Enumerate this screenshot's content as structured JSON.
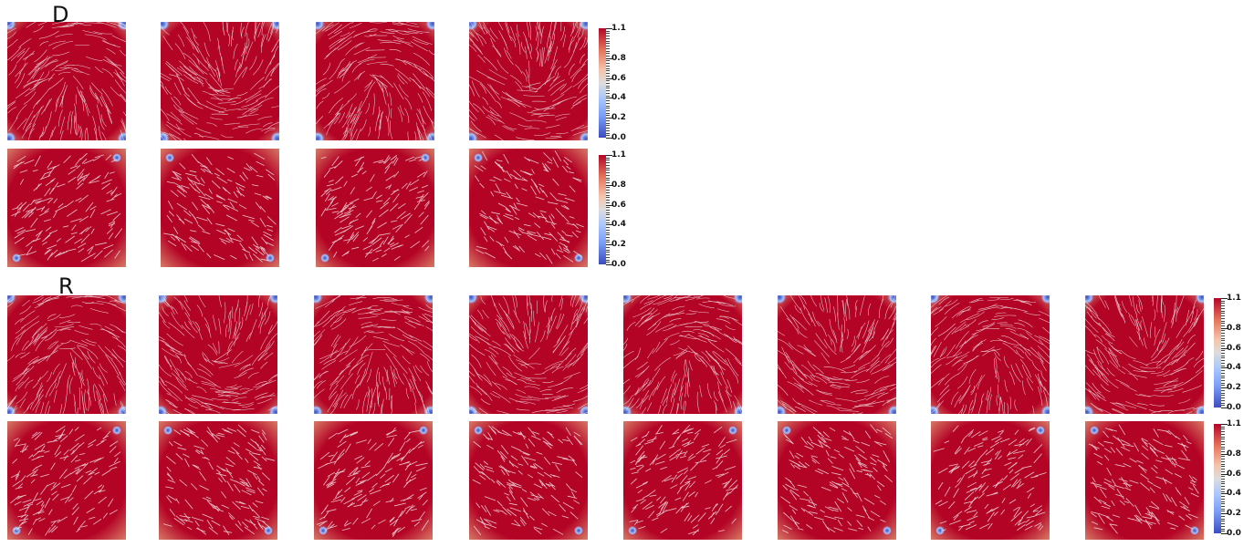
{
  "labels": {
    "top": "D",
    "bottom": "R"
  },
  "colorbar": {
    "ticks": [
      "1.1",
      "0.8",
      "0.6",
      "0.4",
      "0.2",
      "0.0"
    ],
    "tick_values": [
      1.1,
      0.8,
      0.6,
      0.4,
      0.2,
      0.0
    ],
    "range": [
      0.0,
      1.1
    ],
    "colormap": "cool-to-warm"
  },
  "colors": {
    "field_high": "#b40426",
    "field_mid": "#dddcdc",
    "field_low": "#3b4cc0",
    "streamline": "#f2e6e6"
  },
  "grid": {
    "top_rows": 2,
    "top_cols": 4,
    "bottom_rows": 2,
    "bottom_cols": 8
  }
}
